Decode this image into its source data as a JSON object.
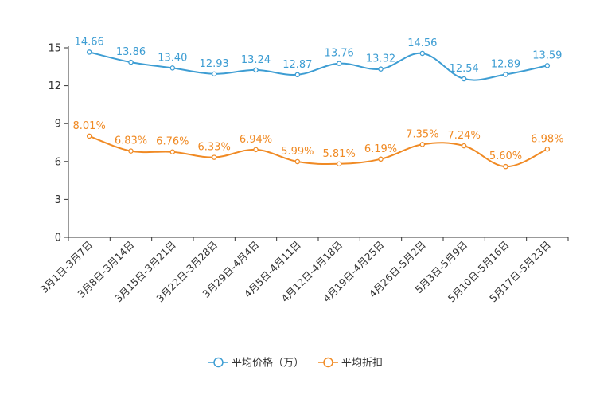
{
  "chart_data": {
    "type": "line",
    "categories": [
      "3月1日-3月7日",
      "3月8日-3月14日",
      "3月15日-3月21日",
      "3月22日-3月28日",
      "3月29日-4月4日",
      "4月5日-4月11日",
      "4月12日-4月18日",
      "4月19日-4月25日",
      "4月26日-5月2日",
      "5月3日-5月9日",
      "5月10日-5月16日",
      "5月17日-5月23日"
    ],
    "series": [
      {
        "name": "平均价格（万）",
        "values": [
          14.66,
          13.86,
          13.4,
          12.93,
          13.24,
          12.87,
          13.76,
          13.32,
          14.56,
          12.54,
          12.89,
          13.59
        ],
        "labels": [
          "14.66",
          "13.86",
          "13.40",
          "12.93",
          "13.24",
          "12.87",
          "13.76",
          "13.32",
          "14.56",
          "12.54",
          "12.89",
          "13.59"
        ],
        "color": "#3d9dd3"
      },
      {
        "name": "平均折扣",
        "values": [
          8.01,
          6.83,
          6.76,
          6.33,
          6.94,
          5.99,
          5.81,
          6.19,
          7.35,
          7.24,
          5.6,
          6.98
        ],
        "labels": [
          "8.01%",
          "6.83%",
          "6.76%",
          "6.33%",
          "6.94%",
          "5.99%",
          "5.81%",
          "6.19%",
          "7.35%",
          "7.24%",
          "5.60%",
          "6.98%"
        ],
        "color": "#f08a24"
      }
    ],
    "yticks": [
      "0",
      "3",
      "6",
      "9",
      "12",
      "15"
    ],
    "ylim": [
      0,
      15
    ],
    "title": "",
    "xlabel": "",
    "ylabel": "",
    "legend": "bottom-center",
    "grid": false
  }
}
